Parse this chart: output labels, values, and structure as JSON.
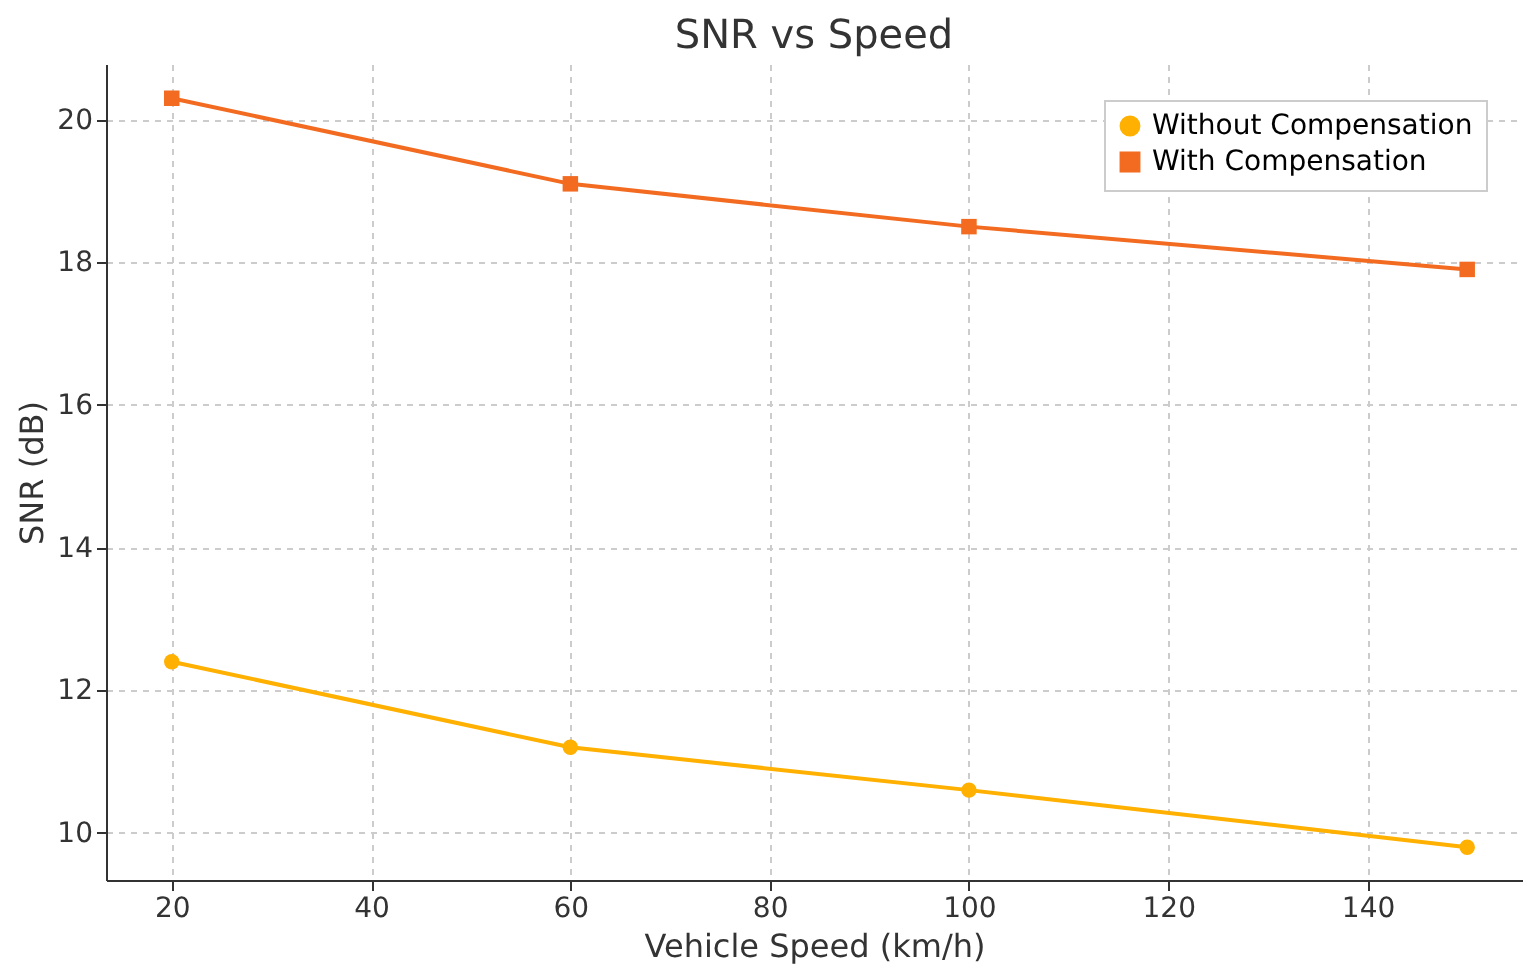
{
  "chart_data": {
    "type": "line",
    "title": "SNR vs Speed",
    "xlabel": "Vehicle Speed (km/h)",
    "ylabel": "SNR (dB)",
    "x": [
      20,
      60,
      100,
      150
    ],
    "series": [
      {
        "name": "Without Compensation",
        "color": "#ffb000",
        "marker": "circle",
        "values": [
          12.4,
          11.2,
          10.6,
          9.8
        ]
      },
      {
        "name": "With Compensation",
        "color": "#f26b21",
        "marker": "square",
        "values": [
          20.3,
          19.1,
          18.5,
          17.9
        ]
      }
    ],
    "xlim": [
      13.4,
      155.5
    ],
    "xticks": [
      20,
      40,
      60,
      80,
      100,
      120,
      140
    ],
    "ylim": [
      9.34,
      20.78
    ],
    "yticks": [
      10,
      12,
      14,
      16,
      18,
      20
    ],
    "grid": true,
    "legend": "top right",
    "line_style": "solid"
  }
}
